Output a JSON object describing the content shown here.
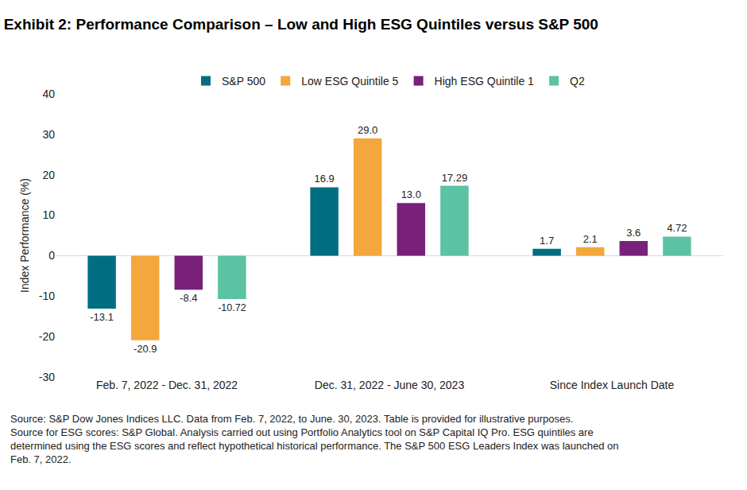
{
  "chart_data": {
    "type": "bar",
    "title": "Exhibit 2: Performance Comparison – Low and High ESG Quintiles versus S&P 500",
    "y_label": "Index Performance (%)",
    "categories": [
      "Feb. 7, 2022 - Dec. 31, 2022",
      "Dec. 31, 2022 - June 30, 2023",
      "Since Index Launch Date"
    ],
    "series": [
      {
        "name": "S&P 500",
        "color": "#006e82",
        "values": [
          -13.1,
          16.9,
          1.7
        ],
        "value_labels": [
          "-13.1",
          "16.9",
          "1.7"
        ]
      },
      {
        "name": "Low ESG Quintile 5",
        "color": "#f4a73c",
        "values": [
          -20.9,
          29.0,
          2.1
        ],
        "value_labels": [
          "-20.9",
          "29.0",
          "2.1"
        ]
      },
      {
        "name": "High ESG Quintile 1",
        "color": "#78207a",
        "values": [
          -8.4,
          13.0,
          3.6
        ],
        "value_labels": [
          "-8.4",
          "13.0",
          "3.6"
        ]
      },
      {
        "name": "Q2",
        "color": "#5cc2a4",
        "values": [
          -10.72,
          17.29,
          4.72
        ],
        "value_labels": [
          "-10.72",
          "17.29",
          "4.72"
        ]
      }
    ],
    "ylim": [
      -30,
      40
    ],
    "yticks": [
      -30,
      -20,
      -10,
      0,
      10,
      20,
      30,
      40
    ],
    "grid": false,
    "legend": "top",
    "data_labels": true,
    "source": "Source: S&P Dow Jones Indices LLC. Data from Feb. 7, 2022, to June. 30, 2023. Table is provided for illustrative purposes. Source for ESG scores: S&P Global. Analysis carried out using Portfolio Analytics tool on S&P Capital IQ Pro. ESG quintiles are determined using the ESG scores and reflect hypothetical historical performance. The S&P 500 ESG Leaders Index was launched on Feb. 7, 2022."
  }
}
